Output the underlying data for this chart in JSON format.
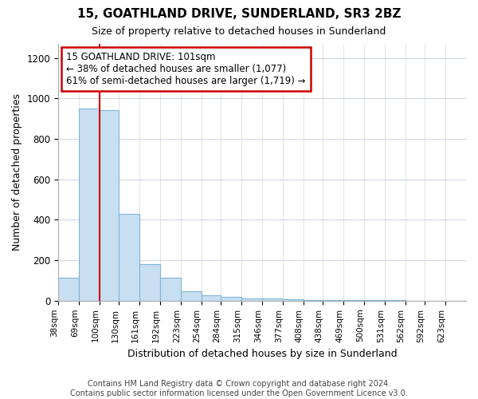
{
  "title": "15, GOATHLAND DRIVE, SUNDERLAND, SR3 2BZ",
  "subtitle": "Size of property relative to detached houses in Sunderland",
  "xlabel": "Distribution of detached houses by size in Sunderland",
  "ylabel": "Number of detached properties",
  "bar_edges": [
    38,
    69,
    100,
    130,
    161,
    192,
    223,
    254,
    284,
    315,
    346,
    377,
    408,
    438,
    469,
    500,
    531,
    562,
    592,
    623,
    654
  ],
  "bar_heights": [
    113,
    951,
    944,
    428,
    180,
    113,
    45,
    28,
    18,
    12,
    10,
    7,
    5,
    4,
    3,
    2,
    2,
    1,
    1,
    1
  ],
  "bar_color": "#c8dff2",
  "bar_edge_color": "#7eb6d9",
  "property_size": 101,
  "annotation_text": "15 GOATHLAND DRIVE: 101sqm\n← 38% of detached houses are smaller (1,077)\n61% of semi-detached houses are larger (1,719) →",
  "annotation_box_color": "#ffffff",
  "annotation_box_edge": "#cc0000",
  "vline_color": "#cc0000",
  "ylim": [
    0,
    1270
  ],
  "yticks": [
    0,
    200,
    400,
    600,
    800,
    1000,
    1200
  ],
  "footer": "Contains HM Land Registry data © Crown copyright and database right 2024.\nContains public sector information licensed under the Open Government Licence v3.0.",
  "bg_color": "#ffffff",
  "grid_color": "#d0d8e4"
}
